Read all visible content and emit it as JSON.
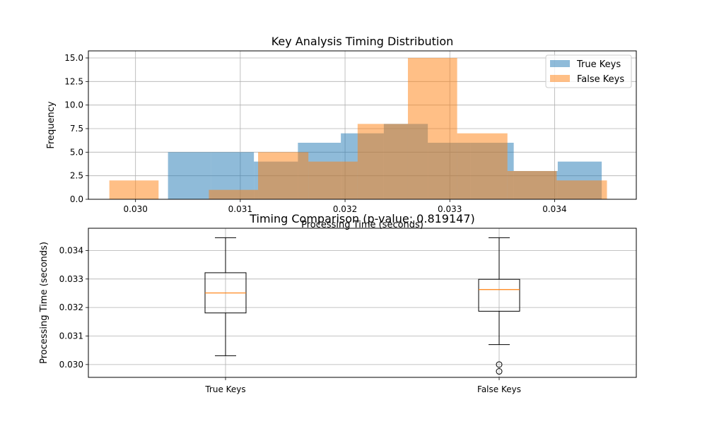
{
  "chart_data": [
    {
      "type": "histogram",
      "title": "Key Analysis Timing Distribution",
      "xlabel": "Processing Time (seconds)",
      "ylabel": "Frequency",
      "xlim": [
        0.02955,
        0.03478
      ],
      "ylim": [
        0,
        15.75
      ],
      "xticks": [
        0.03,
        0.031,
        0.032,
        0.033,
        0.034
      ],
      "xtick_labels": [
        "0.030",
        "0.031",
        "0.032",
        "0.033",
        "0.034"
      ],
      "yticks": [
        0,
        2.5,
        5,
        7.5,
        10,
        12.5,
        15
      ],
      "ytick_labels": [
        "0.0",
        "2.5",
        "5.0",
        "7.5",
        "10.0",
        "12.5",
        "15.0"
      ],
      "grid": true,
      "legend": "top-right",
      "series": [
        {
          "name": "True Keys",
          "color": "#1f77b4",
          "alpha": 0.5,
          "bin_edges": [
            0.03031,
            0.03072,
            0.03113,
            0.03155,
            0.03196,
            0.03237,
            0.03279,
            0.0332,
            0.03361,
            0.03403,
            0.03445
          ],
          "counts": [
            5,
            5,
            4,
            6,
            7,
            8,
            6,
            6,
            3,
            4
          ]
        },
        {
          "name": "False Keys",
          "color": "#ff7f0e",
          "alpha": 0.5,
          "bin_edges": [
            0.02975,
            0.03022,
            0.0307,
            0.03117,
            0.03165,
            0.03212,
            0.0326,
            0.03307,
            0.03355,
            0.03402,
            0.0345
          ],
          "counts": [
            2,
            0,
            1,
            5,
            4,
            8,
            15,
            7,
            3,
            2
          ]
        }
      ]
    },
    {
      "type": "boxplot",
      "title": "Timing Comparison (p-value: 0.819147)",
      "xlabel": "",
      "ylabel": "Processing Time (seconds)",
      "ylim": [
        0.02955,
        0.03478
      ],
      "yticks": [
        0.03,
        0.031,
        0.032,
        0.033,
        0.034
      ],
      "ytick_labels": [
        "0.030",
        "0.031",
        "0.032",
        "0.033",
        "0.034"
      ],
      "grid": true,
      "categories": [
        "True Keys",
        "False Keys"
      ],
      "boxes": [
        {
          "name": "True Keys",
          "whisker_low": 0.03031,
          "q1": 0.03181,
          "median": 0.03251,
          "q3": 0.03322,
          "whisker_high": 0.03445,
          "outliers": []
        },
        {
          "name": "False Keys",
          "whisker_low": 0.0307,
          "q1": 0.03187,
          "median": 0.03263,
          "q3": 0.03299,
          "whisker_high": 0.03445,
          "outliers": [
            0.03,
            0.02976
          ]
        }
      ],
      "median_color": "#ff7f0e"
    }
  ]
}
